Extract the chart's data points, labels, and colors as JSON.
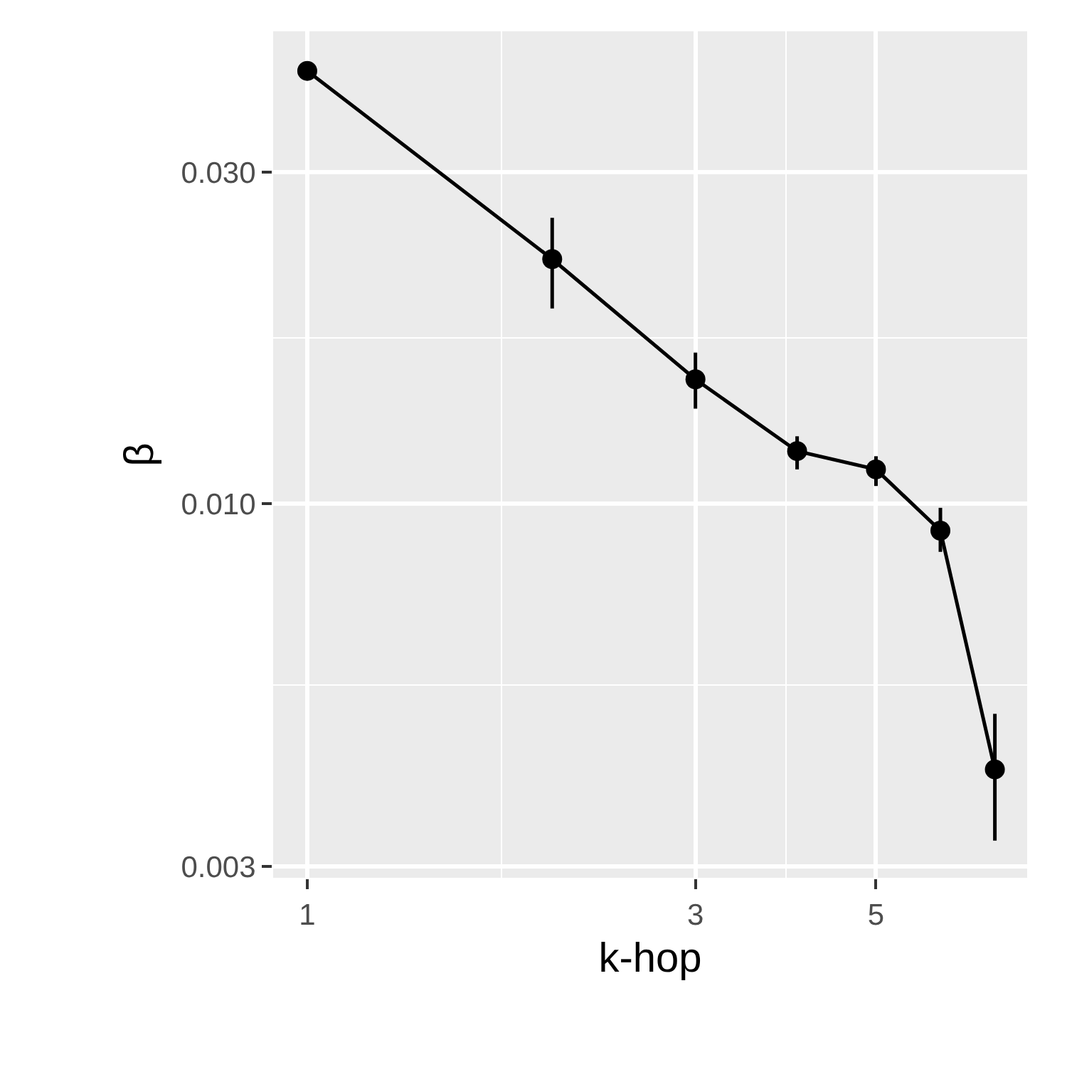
{
  "chart_data": {
    "type": "line",
    "xlabel": "k-hop",
    "ylabel": "β",
    "x": [
      1,
      2,
      3,
      4,
      5,
      6,
      7
    ],
    "series": [
      {
        "color": "#000000",
        "values": [
          0.042,
          0.0225,
          0.0151,
          0.0119,
          0.0112,
          0.00914,
          0.00414
        ],
        "errors": [
          null,
          [
            0.0191,
            0.0258
          ],
          [
            0.0137,
            0.0165
          ],
          [
            0.0112,
            0.0125
          ],
          [
            0.0106,
            0.0117
          ],
          [
            0.00852,
            0.00986
          ],
          [
            0.00327,
            0.00498
          ]
        ]
      }
    ],
    "log": "xy",
    "xlim": [
      0.908,
      7.67
    ],
    "ylim": [
      0.00289,
      0.0479
    ],
    "xticks": [
      1,
      3,
      5
    ],
    "yticks": [
      {
        "value": 0.003,
        "label": "0.003"
      },
      {
        "value": 0.01,
        "label": "0.010"
      },
      {
        "value": 0.03,
        "label": "0.030"
      }
    ],
    "grid": true,
    "marker": "circle",
    "line_style": "solid"
  }
}
